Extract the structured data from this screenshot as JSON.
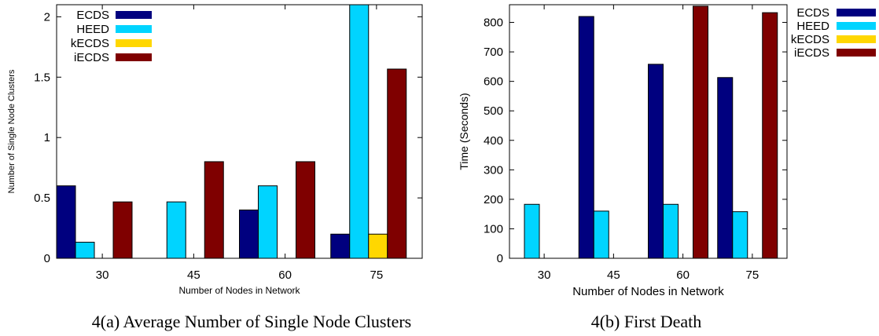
{
  "chart_data": [
    {
      "type": "bar",
      "caption": "4(a)  Average Number of Single Node Clusters",
      "xlabel": "Number of Nodes in Network",
      "ylabel": "Number of Single Node Clusters",
      "categories": [
        "30",
        "45",
        "60",
        "75"
      ],
      "ylim": [
        0,
        2.1
      ],
      "yticks": [
        "0",
        "0.5",
        "1",
        "1.5",
        "2"
      ],
      "ytick_values": [
        0,
        0.5,
        1,
        1.5,
        2
      ],
      "legend_position": "top-left",
      "grid": false,
      "series": [
        {
          "name": "ECDS",
          "color": "#00007f",
          "values": [
            0.6,
            0,
            0.4,
            0.2
          ]
        },
        {
          "name": "HEED",
          "color": "#00d4ff",
          "values": [
            0.133,
            0.467,
            0.6,
            2.1
          ]
        },
        {
          "name": "kECDS",
          "color": "#ffd700",
          "values": [
            0,
            0,
            0,
            0.2
          ]
        },
        {
          "name": "iECDS",
          "color": "#7f0000",
          "values": [
            0.467,
            0.8,
            0.8,
            1.567
          ]
        }
      ]
    },
    {
      "type": "bar",
      "caption": "4(b)  First Death",
      "xlabel": "Number of Nodes in Network",
      "ylabel": "Time (Seconds)",
      "categories": [
        "30",
        "45",
        "60",
        "75"
      ],
      "ylim": [
        0,
        860
      ],
      "yticks": [
        "0",
        "100",
        "200",
        "300",
        "400",
        "500",
        "600",
        "700",
        "800"
      ],
      "ytick_values": [
        0,
        100,
        200,
        300,
        400,
        500,
        600,
        700,
        800
      ],
      "legend_position": "top-right",
      "grid": false,
      "series": [
        {
          "name": "ECDS",
          "color": "#00007f",
          "values": [
            0,
            820,
            658,
            613
          ]
        },
        {
          "name": "HEED",
          "color": "#00d4ff",
          "values": [
            183,
            160,
            183,
            158
          ]
        },
        {
          "name": "kECDS",
          "color": "#ffd700",
          "values": [
            0,
            0,
            0,
            0
          ]
        },
        {
          "name": "iECDS",
          "color": "#7f0000",
          "values": [
            0,
            0,
            855,
            833
          ]
        }
      ]
    }
  ]
}
